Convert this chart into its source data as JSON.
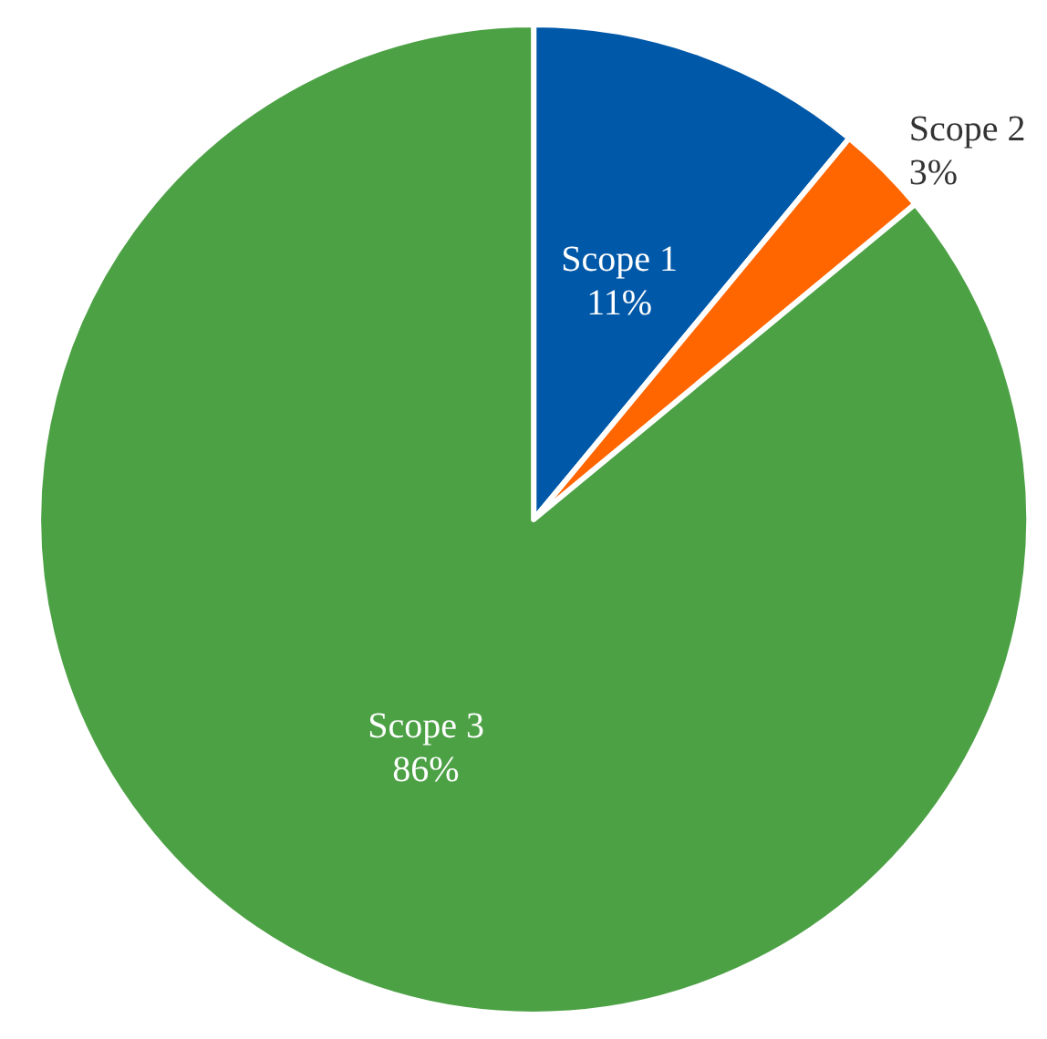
{
  "chart_data": {
    "type": "pie",
    "categories": [
      "Scope 1",
      "Scope 2",
      "Scope 3"
    ],
    "values": [
      11,
      3,
      86
    ],
    "value_labels": [
      "11%",
      "3%",
      "86%"
    ],
    "colors": [
      "#0058a8",
      "#ff6600",
      "#4ca145"
    ],
    "legend": false
  }
}
